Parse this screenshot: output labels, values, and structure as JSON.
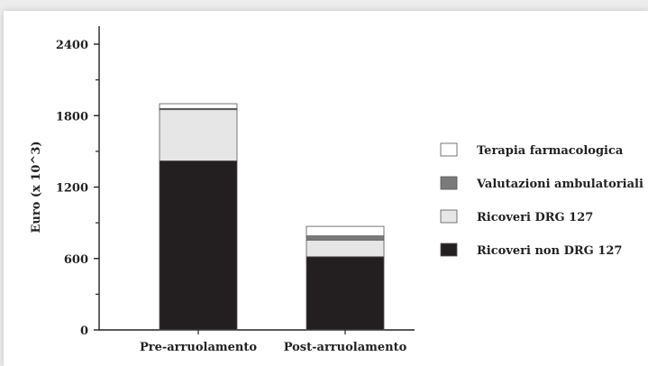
{
  "chart_data": {
    "type": "bar",
    "stacked": true,
    "title": "",
    "xlabel": "",
    "ylabel": "Euro (x 10^3)",
    "ylim": [
      0,
      2400
    ],
    "yticks": [
      0,
      600,
      1200,
      1800,
      2400
    ],
    "categories": [
      "Pre-arruolamento",
      "Post-arruolamento"
    ],
    "series": [
      {
        "name": "Ricoveri non DRG 127",
        "values": [
          1420,
          615
        ],
        "color": "#231f20"
      },
      {
        "name": "Ricoveri DRG 127",
        "values": [
          430,
          140
        ],
        "color": "#e6e6e6"
      },
      {
        "name": "Valutazioni ambulatoriali",
        "values": [
          10,
          35
        ],
        "color": "#7a7a7a"
      },
      {
        "name": "Terapia farmacologica",
        "values": [
          40,
          80
        ],
        "color": "#ffffff"
      }
    ],
    "legend_order": [
      "Terapia farmacologica",
      "Valutazioni ambulatoriali",
      "Ricoveri DRG 127",
      "Ricoveri non DRG 127"
    ],
    "legend_position": "right",
    "grid": false
  }
}
